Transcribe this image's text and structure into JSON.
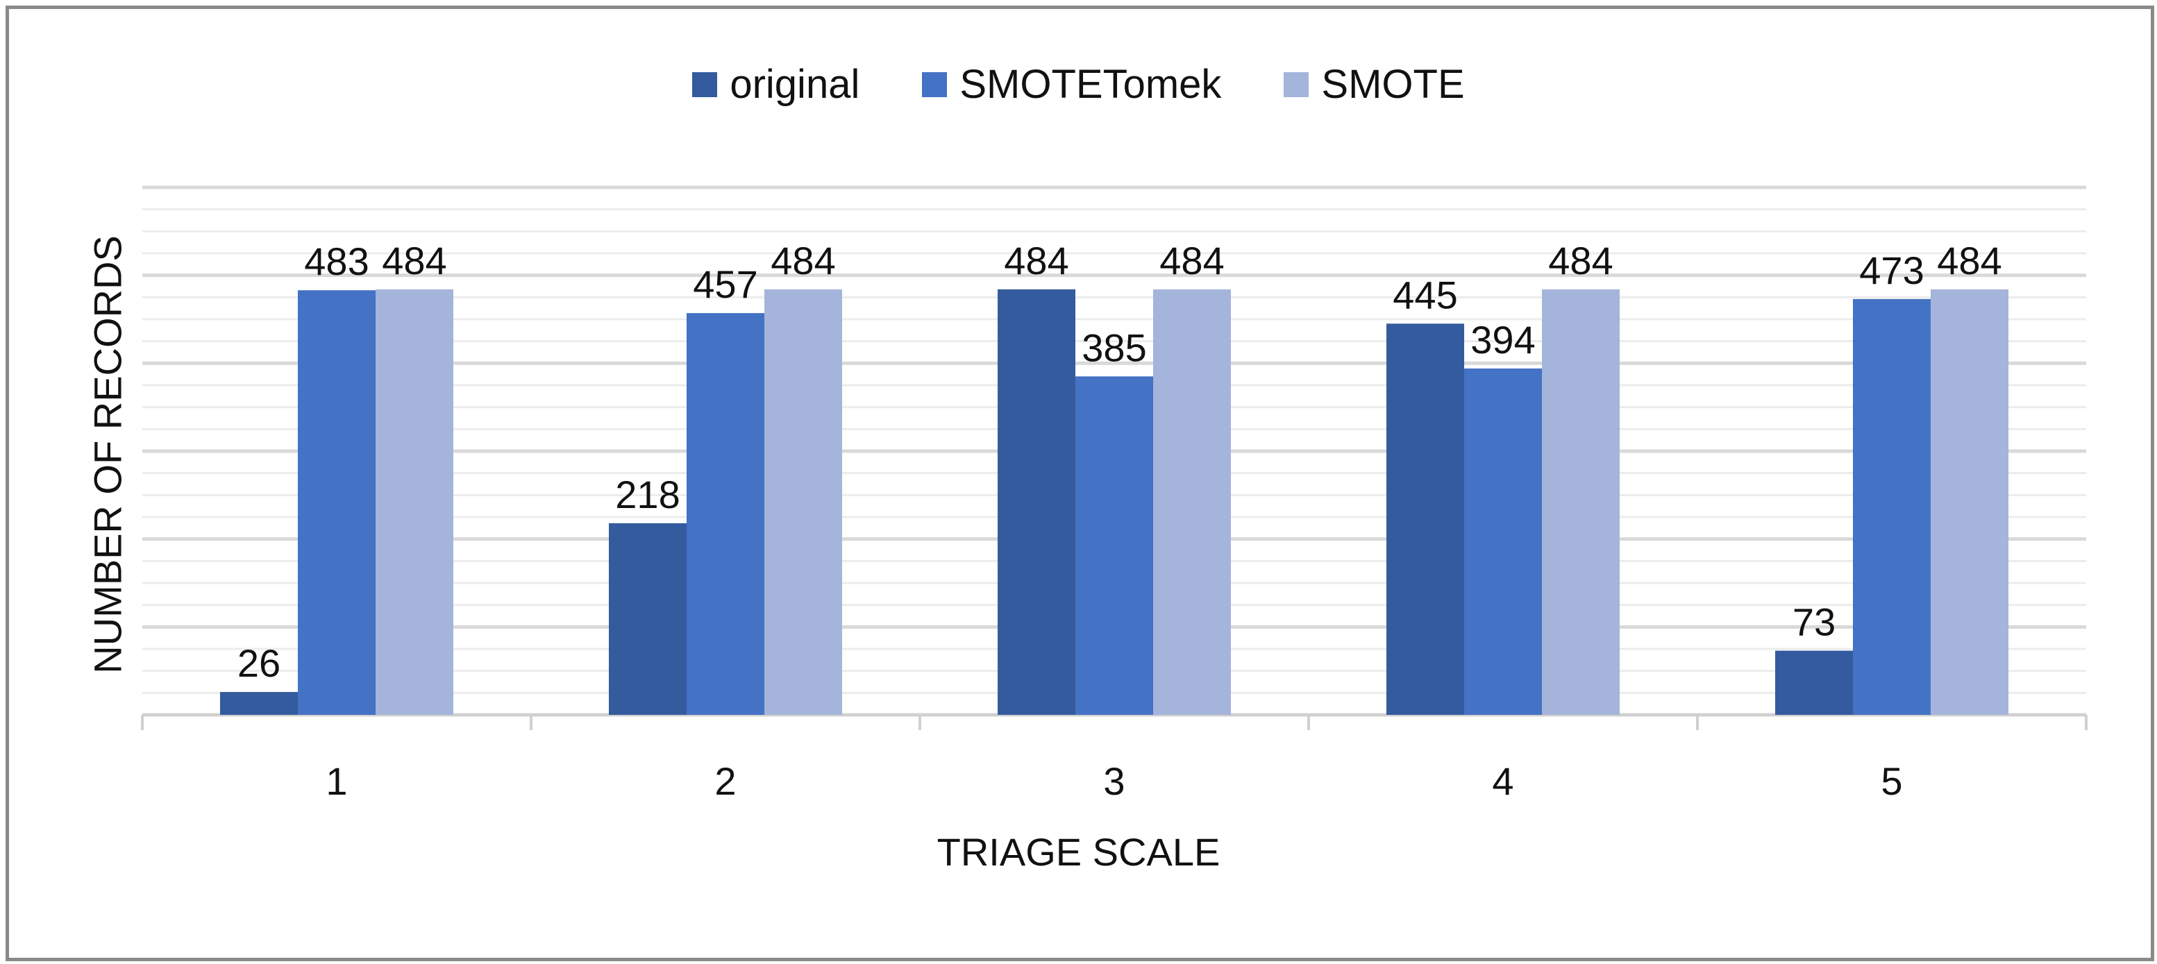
{
  "chart_data": {
    "type": "bar",
    "categories": [
      "1",
      "2",
      "3",
      "4",
      "5"
    ],
    "series": [
      {
        "name": "original",
        "color": "#345B9E",
        "values": [
          26,
          218,
          484,
          445,
          73
        ]
      },
      {
        "name": "SMOTETomek",
        "color": "#4472C4",
        "values": [
          483,
          457,
          385,
          394,
          473
        ]
      },
      {
        "name": "SMOTE",
        "color": "#A5B4DA",
        "values": [
          484,
          484,
          484,
          484,
          484
        ]
      }
    ],
    "title": "",
    "xlabel": "TRIAGE SCALE",
    "ylabel": "NUMBER OF RECORDS",
    "ylim": [
      0,
      600
    ],
    "legend_position": "top",
    "data_labels": true,
    "grid": true
  }
}
